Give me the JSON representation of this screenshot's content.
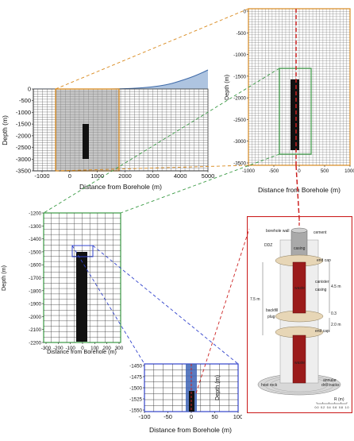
{
  "colors": {
    "orange": "#d98a1e",
    "green": "#3a9a44",
    "blue": "#3344cc",
    "red": "#cc2222",
    "terrain": "#6b93c6",
    "canister": "#9b1b1b"
  },
  "panel_a": {
    "ylabel": "Depth (m)",
    "xlabel": "Distance from Borehole (m)",
    "yticks": [
      "0",
      "-500",
      "-1000",
      "-1500",
      "-2000",
      "-2500",
      "-3000",
      "-3500"
    ],
    "xticks": [
      "-1000",
      "0",
      "1000",
      "2000",
      "3000",
      "4000",
      "5000"
    ]
  },
  "panel_b": {
    "ylabel": "Depth (m)",
    "xlabel": "Distance from Borehole (m)",
    "yticks": [
      "0",
      "-500",
      "-1000",
      "-1500",
      "-2000",
      "-2500",
      "-3000",
      "-3500"
    ],
    "xticks": [
      "-1000",
      "-500",
      "0",
      "500",
      "1000"
    ]
  },
  "panel_c": {
    "ylabel": "Depth (m)",
    "xlabel": "Distance from Borehole (m)",
    "yticks": [
      "-1200",
      "-1300",
      "-1400",
      "-1500",
      "-1600",
      "-1700",
      "-1800",
      "-1900",
      "-2000",
      "-2100",
      "-2200"
    ],
    "xticks": [
      "-300",
      "-200",
      "-100",
      "0",
      "100",
      "200",
      "300"
    ]
  },
  "panel_d": {
    "ylabel": "Depth (m)",
    "xlabel": "Distance from Borehole (m)",
    "yticks": [
      "-1450",
      "-1475",
      "-1500",
      "-1525",
      "-1550"
    ],
    "xticks": [
      "-100",
      "-50",
      "0",
      "50",
      "100"
    ]
  },
  "panel_e": {
    "annotations": {
      "borehole_wall": "borehole wall",
      "cement": "cement",
      "casing_top": "casing",
      "ddz": "DDZ",
      "end_cap_1": "end cap",
      "canister": "canister",
      "casing_mid": "casing",
      "waste_1": "waste",
      "length_total": "7.5 m",
      "length_canister": "4.5 m",
      "length_cap": "0.3",
      "length_plug": "2.0 m",
      "backfill": "backfill",
      "plug": "plug",
      "end_cap_2": "end cap",
      "waste_2": "waste",
      "host_rock": "host rock",
      "annular": "annular",
      "drill_tracks": "drill tracks",
      "scale_label": "R (m)",
      "scale_ticks": [
        "0.0",
        "0.2",
        "0.4",
        "0.6",
        "0.8",
        "1.0"
      ]
    }
  }
}
